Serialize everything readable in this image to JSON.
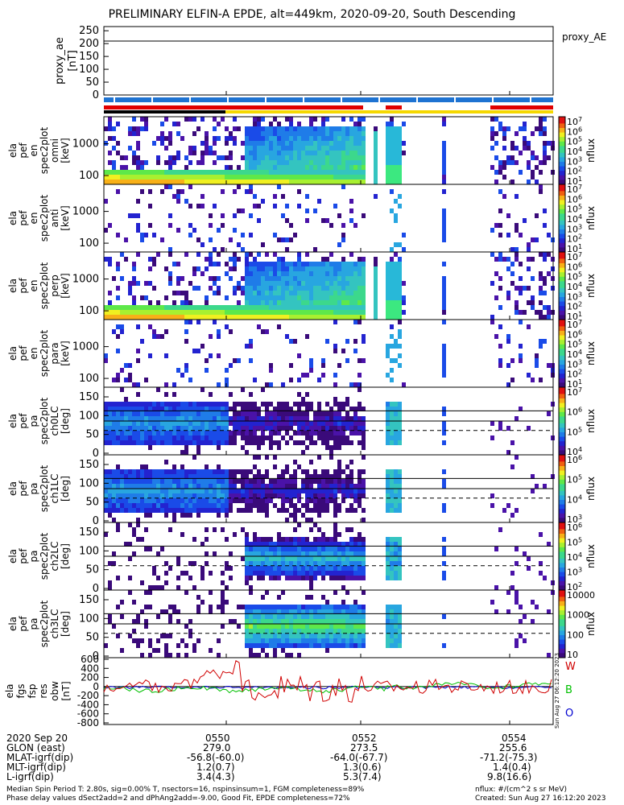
{
  "title": "PRELIMINARY ELFIN-A EPDE, alt=449km, 2020-09-20, South Descending",
  "chart_data": [
    {
      "type": "line",
      "panel": "proxy_ae",
      "ylabel": [
        "proxy_ae",
        "[nT]"
      ],
      "legend": "proxy_AE",
      "yticks": [
        "250",
        "200",
        "150",
        "100",
        "50",
        "0"
      ],
      "ylim": [
        0,
        260
      ],
      "reference_line": 210
    },
    {
      "type": "heatmap",
      "panel": "omni",
      "ylabel": [
        "ela",
        "pef",
        "en",
        "spec2plot",
        "omni",
        "[keV]"
      ],
      "yticks": [
        "1000",
        "100"
      ],
      "colorbar": {
        "label": "nflux",
        "ticks": [
          "10^7",
          "10^6",
          "10^5",
          "10^4",
          "10^3",
          "10^2",
          "10^1"
        ]
      }
    },
    {
      "type": "heatmap",
      "panel": "anti",
      "ylabel": [
        "ela",
        "pef",
        "en",
        "spec2plot",
        "anti",
        "[keV]"
      ],
      "yticks": [
        "1000",
        "100"
      ],
      "colorbar": {
        "label": "nflux",
        "ticks": [
          "10^7",
          "10^6",
          "10^5",
          "10^4",
          "10^3",
          "10^2",
          "10^1"
        ]
      }
    },
    {
      "type": "heatmap",
      "panel": "perp",
      "ylabel": [
        "ela",
        "pef",
        "en",
        "spec2plot",
        "perp",
        "[keV]"
      ],
      "yticks": [
        "1000",
        "100"
      ],
      "colorbar": {
        "label": "nflux",
        "ticks": [
          "10^7",
          "10^6",
          "10^5",
          "10^4",
          "10^3",
          "10^2",
          "10^1"
        ]
      }
    },
    {
      "type": "heatmap",
      "panel": "para",
      "ylabel": [
        "ela",
        "pef",
        "en",
        "spec2plot",
        "para",
        "[keV]"
      ],
      "yticks": [
        "1000",
        "100"
      ],
      "colorbar": {
        "label": "nflux",
        "ticks": [
          "10^7",
          "10^6",
          "10^5",
          "10^4",
          "10^3",
          "10^2",
          "10^1"
        ]
      }
    },
    {
      "type": "heatmap",
      "panel": "ch0LC",
      "ylabel": [
        "ela",
        "pef",
        "pa",
        "spec2plot",
        "ch0LC",
        "[deg]"
      ],
      "yticks": [
        "150",
        "100",
        "50",
        "0"
      ],
      "colorbar": {
        "label": "nflux",
        "ticks": [
          "10^7",
          "10^6",
          "10^5",
          "10^4"
        ]
      }
    },
    {
      "type": "heatmap",
      "panel": "ch1LC",
      "ylabel": [
        "ela",
        "pef",
        "pa",
        "spec2plot",
        "ch1LC",
        "[deg]"
      ],
      "yticks": [
        "150",
        "100",
        "50",
        "0"
      ],
      "colorbar": {
        "label": "nflux",
        "ticks": [
          "10^6",
          "10^5",
          "10^4",
          "10^3"
        ]
      }
    },
    {
      "type": "heatmap",
      "panel": "ch2LC",
      "ylabel": [
        "ela",
        "pef",
        "pa",
        "spec2plot",
        "ch2LC",
        "[deg]"
      ],
      "yticks": [
        "150",
        "100",
        "50",
        "0"
      ],
      "colorbar": {
        "label": "nflux",
        "ticks": [
          "10^6",
          "10^5",
          "10^4",
          "10^3",
          "10^2"
        ]
      }
    },
    {
      "type": "heatmap",
      "panel": "ch3LC",
      "ylabel": [
        "ela",
        "pef",
        "pa",
        "spec2plot",
        "ch3LC",
        "[deg]"
      ],
      "yticks": [
        "150",
        "100",
        "50",
        "0"
      ],
      "colorbar": {
        "label": "nflux",
        "ticks": [
          "10000",
          "1000",
          "100",
          "10"
        ]
      }
    },
    {
      "type": "line",
      "panel": "fgs",
      "ylabel": [
        "ela",
        "fgs",
        "fsp",
        "res",
        "obw",
        "[nT]"
      ],
      "yticks": [
        "600",
        "400",
        "200",
        "0",
        "-200",
        "-400",
        "-600",
        "-800"
      ],
      "ylim": [
        -800,
        600
      ],
      "legend": [
        "W",
        "B",
        "O"
      ],
      "colors": [
        "#d00000",
        "#00c000",
        "#0000d0"
      ]
    }
  ],
  "time_axis": {
    "ticks": [
      "0550",
      "0552",
      "0554"
    ]
  },
  "ephemeris": {
    "rows": [
      {
        "label": "2020 Sep 20",
        "values": [
          "0550",
          "0552",
          "0554"
        ]
      },
      {
        "label": "GLON (east)",
        "values": [
          "279.0",
          "273.5",
          "255.6"
        ]
      },
      {
        "label": "MLAT-igrf(dip)",
        "values": [
          "-56.8(-60.0)",
          "-64.0(-67.7)",
          "-71.2(-75.3)"
        ]
      },
      {
        "label": "MLT-igrf(dip)",
        "values": [
          "1.2(0.7)",
          "1.3(0.6)",
          "1.4(0.4)"
        ]
      },
      {
        "label": "L-igrf(dip)",
        "values": [
          "3.4(4.3)",
          "5.3(7.4)",
          "9.8(16.6)"
        ]
      }
    ]
  },
  "footer": {
    "line1": "Median Spin Period T: 2.80s, sig=0.00% T, nsectors=16, nspinsinsum=1, FGM completeness=89%",
    "line2": "Phase delay values dSect2add=2 and dPhAng2add=-9.00, Good Fit, EPDE completeness=72%",
    "units": "nflux: #/(cm^2 s sr MeV)",
    "created": "Created: Sun Aug 27 16:12:20 2023",
    "side_stamp": "Sun Aug 27 06:12:20 2023"
  },
  "colors": {
    "sci_bar": "#1e73d2",
    "red_bar": "#e00000",
    "yellow_bar": "#f5d800",
    "black_bar": "#000000"
  }
}
